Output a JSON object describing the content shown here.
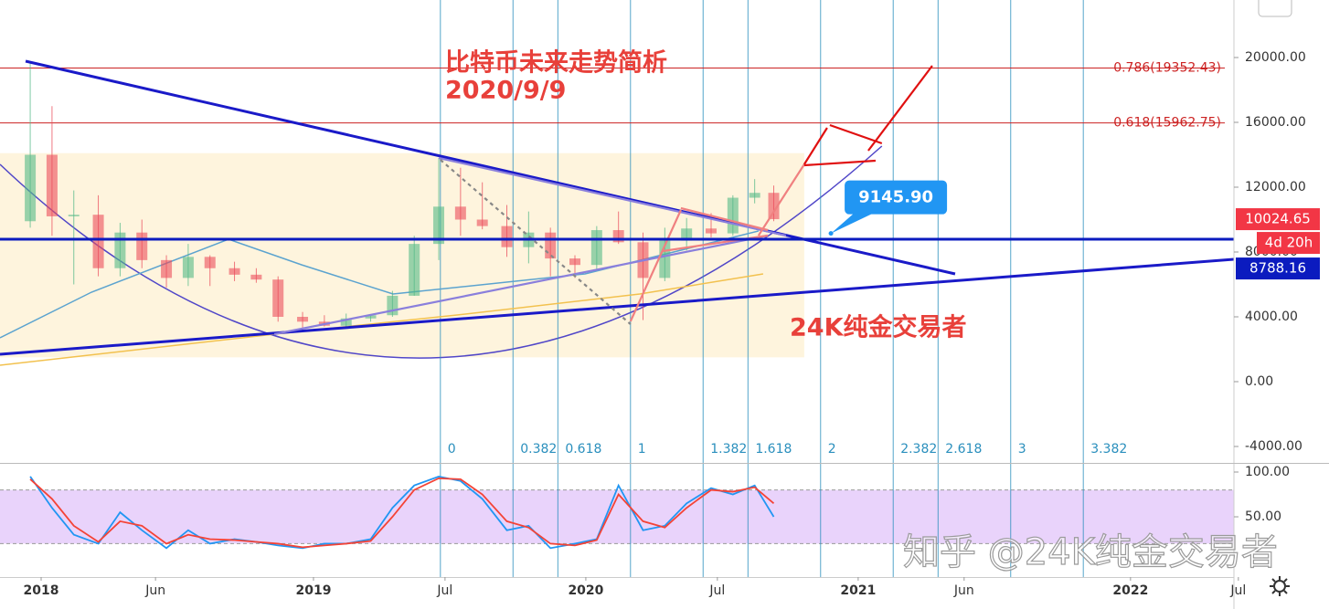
{
  "chart_data": {
    "type": "candlestick",
    "title": "比特币未来走势简析",
    "subtitle": "2020/9/9",
    "annotation": "24K纯金交易者",
    "watermark": "知乎 @24K纯金交易者",
    "x": [
      2017.96,
      2018.04,
      2018.12,
      2018.21,
      2018.29,
      2018.37,
      2018.46,
      2018.54,
      2018.62,
      2018.71,
      2018.79,
      2018.87,
      2018.96,
      2019.04,
      2019.12,
      2019.21,
      2019.29,
      2019.37,
      2019.46,
      2019.54,
      2019.62,
      2019.71,
      2019.79,
      2019.87,
      2019.96,
      2020.04,
      2020.12,
      2020.21,
      2020.29,
      2020.37,
      2020.46,
      2020.54,
      2020.62,
      2020.69
    ],
    "open": [
      9900,
      14000,
      10200,
      10300,
      7000,
      9200,
      7500,
      6400,
      7700,
      7000,
      6600,
      6300,
      4000,
      3700,
      3450,
      3900,
      4100,
      5300,
      8500,
      10800,
      10000,
      9600,
      8300,
      9200,
      7600,
      7200,
      9350,
      8600,
      6400,
      8700,
      9450,
      9150,
      11350,
      11650
    ],
    "high": [
      19700,
      17000,
      11800,
      11500,
      9800,
      10000,
      7800,
      8500,
      7800,
      7400,
      7000,
      6500,
      4300,
      4100,
      4200,
      4100,
      5600,
      9000,
      13800,
      13200,
      12300,
      10900,
      10500,
      9500,
      7800,
      9600,
      10500,
      9200,
      9500,
      10100,
      10400,
      11500,
      12500,
      12100
    ],
    "low": [
      9500,
      9000,
      6000,
      6500,
      6500,
      7000,
      5800,
      5900,
      5900,
      6200,
      6100,
      3700,
      3200,
      3400,
      3400,
      3700,
      4000,
      5300,
      7500,
      9000,
      9400,
      7700,
      7300,
      6500,
      6400,
      6900,
      8500,
      3800,
      6200,
      8100,
      8900,
      9000,
      11000,
      9900
    ],
    "close": [
      14000,
      10200,
      10300,
      7000,
      9200,
      7500,
      6400,
      7700,
      7000,
      6600,
      6300,
      4000,
      3700,
      3450,
      3900,
      4100,
      5300,
      8500,
      10800,
      10000,
      9600,
      8300,
      9200,
      7600,
      7200,
      9350,
      8600,
      6400,
      8700,
      9450,
      9150,
      11350,
      11650,
      10025
    ],
    "up_color": "#53b987",
    "down_color": "#eb4d5c",
    "xlim": [
      2017.849,
      2022.42
    ],
    "ylim": [
      -5014,
      23549
    ],
    "xticks": [
      2018,
      {
        "value": 2018.42,
        "label": "Jun"
      },
      2019,
      {
        "value": 2019.483,
        "label": "Jul"
      },
      2020,
      {
        "value": 2020.483,
        "label": "Jul"
      },
      2021,
      {
        "value": 2021.389,
        "label": "Jun"
      },
      2022,
      {
        "value": 2022.396,
        "label": "Jul"
      }
    ],
    "yticks": [
      {
        "value": -4000,
        "label": "-4000.00"
      },
      {
        "value": 0,
        "label": "0.00"
      },
      {
        "value": 4000,
        "label": "4000.00"
      },
      {
        "value": 8000,
        "label": "8000.00"
      },
      {
        "value": 12000,
        "label": "12000.00"
      },
      {
        "value": 16000,
        "label": "16000.00"
      },
      {
        "value": 20000,
        "label": "20000.00"
      }
    ],
    "grid": false,
    "moving_averages": [
      {
        "color": "#5ba3cf",
        "x": [
          2017.849,
          2018.185,
          2018.688,
          2018.956,
          2019.292,
          2019.997,
          2020.634
        ],
        "values": [
          2704,
          5521,
          8789,
          7211,
          5408,
          6648,
          9296
        ]
      },
      {
        "color": "#f2c14e",
        "x": [
          2017.849,
          2018.856,
          2019.527,
          2020.198,
          2020.651
        ],
        "values": [
          1014,
          2930,
          4113,
          5408,
          6648
        ]
      }
    ],
    "fib_retracement": {
      "color": "#cc2222",
      "levels": [
        {
          "value": 19352.43,
          "label": "0.786(19352.43)"
        },
        {
          "value": 15962.75,
          "label": "0.618(15962.75)"
        }
      ]
    },
    "fib_time": {
      "color": "#2a8fbd",
      "start": 2019.466,
      "end": 2020.164,
      "levels": [
        0,
        0.382,
        0.618,
        1,
        1.382,
        1.618,
        2,
        2.382,
        2.618,
        3,
        3.382
      ]
    },
    "price_lines": [
      {
        "value": 8788.16,
        "label": "8788.16",
        "color": "#0b1bbf"
      }
    ],
    "last_price": {
      "value": 10024.65,
      "label": "10024.65",
      "countdown": "4d 20h",
      "color": "#f23645"
    },
    "callout": {
      "x": 2020.9,
      "value": 9145.9,
      "value_label": "9145.90",
      "color": "#2196f3"
    },
    "drawings": [
      {
        "kind": "rect",
        "color": "#fdf0d2",
        "points": [
          [
            2017.849,
            14100
          ],
          [
            2020.802,
            1500
          ]
        ]
      },
      {
        "kind": "curve",
        "color": "#5046c8",
        "points": [
          [
            2017.849,
            13408
          ],
          [
            2019.426,
            1465
          ],
          [
            2021.087,
            14535
          ]
        ]
      },
      {
        "kind": "line",
        "color": "#1a1ac8",
        "points": [
          [
            2017.943,
            19775
          ],
          [
            2021.356,
            6648
          ]
        ]
      },
      {
        "kind": "line",
        "color": "#1a1ac8",
        "points": [
          [
            2017.849,
            1690
          ],
          [
            2022.379,
            7549
          ]
        ]
      },
      {
        "kind": "line",
        "color": "#8a7fdc",
        "points": [
          [
            2019.46,
            13803
          ],
          [
            2020.735,
            9014
          ]
        ]
      },
      {
        "kind": "line",
        "color": "#8a7fdc",
        "points": [
          [
            2018.856,
            2930
          ],
          [
            2020.668,
            9014
          ]
        ]
      },
      {
        "kind": "dashed",
        "color": "#888888",
        "points": [
          [
            2019.466,
            13690
          ],
          [
            2020.164,
            3549
          ]
        ]
      },
      {
        "kind": "line",
        "color": "#f08080",
        "points": [
          [
            2020.164,
            3718
          ],
          [
            2020.349,
            10592
          ]
        ]
      },
      {
        "kind": "line",
        "color": "#f08080",
        "points": [
          [
            2020.282,
            8056
          ],
          [
            2020.668,
            9014
          ]
        ]
      },
      {
        "kind": "line",
        "color": "#f08080",
        "points": [
          [
            2020.349,
            10704
          ],
          [
            2020.668,
            9352
          ]
        ]
      },
      {
        "kind": "line",
        "color": "#f08080",
        "points": [
          [
            2020.634,
            9014
          ],
          [
            2020.802,
            13408
          ]
        ]
      },
      {
        "kind": "line",
        "color": "#e01010",
        "points": [
          [
            2020.802,
            13408
          ],
          [
            2020.886,
            15662
          ]
        ]
      },
      {
        "kind": "line",
        "color": "#e01010",
        "points": [
          [
            2020.896,
            15831
          ],
          [
            2021.087,
            14704
          ]
        ]
      },
      {
        "kind": "line",
        "color": "#e01010",
        "points": [
          [
            2020.802,
            13352
          ],
          [
            2021.064,
            13634
          ]
        ]
      },
      {
        "kind": "line",
        "color": "#e01010",
        "points": [
          [
            2021.037,
            14254
          ],
          [
            2021.272,
            19493
          ]
        ]
      }
    ],
    "oscillator": {
      "type": "stochastic",
      "ylim": [
        -17.3,
        110.2
      ],
      "yticks": [
        {
          "value": 50,
          "label": "50.00"
        },
        {
          "value": 100,
          "label": "100.00"
        }
      ],
      "band": [
        20,
        80
      ],
      "band_color": "#e3c8fa",
      "series": [
        {
          "color": "#2196f3",
          "values": [
            95,
            60,
            30,
            20,
            55,
            35,
            15,
            35,
            20,
            25,
            22,
            18,
            15,
            20,
            20,
            25,
            60,
            85,
            95,
            90,
            70,
            35,
            40,
            15,
            20,
            25,
            85,
            35,
            40,
            65,
            82,
            75,
            85,
            50
          ]
        },
        {
          "color": "#f44336",
          "values": [
            92,
            70,
            40,
            22,
            45,
            40,
            20,
            30,
            25,
            24,
            22,
            20,
            16,
            18,
            20,
            23,
            50,
            80,
            93,
            92,
            75,
            45,
            38,
            20,
            18,
            24,
            75,
            45,
            38,
            60,
            80,
            78,
            83,
            65
          ]
        }
      ]
    }
  }
}
